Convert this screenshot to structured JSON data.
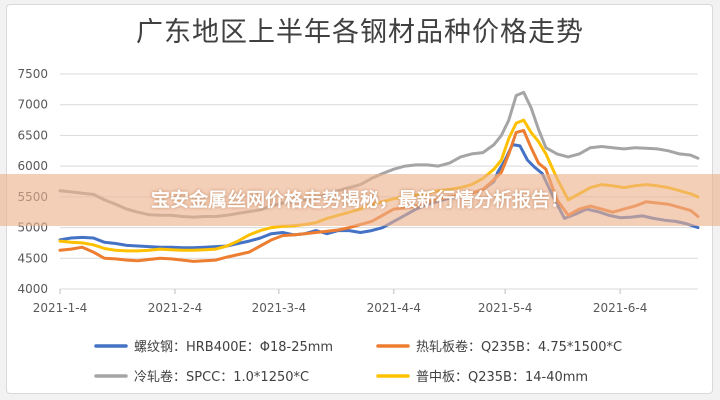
{
  "banner": {
    "text": "宝安金属丝网价格走势揭秘，最新行情分析报告！"
  },
  "colors": {
    "banner_bg": "#eeb28c",
    "banner_text": "#ffffff",
    "grid": "#d9d9d9"
  },
  "chart_data": {
    "type": "line",
    "title": "广东地区上半年各钢材品种价格走势",
    "xlabel": "",
    "ylabel": "",
    "ylim": [
      4000,
      7500
    ],
    "yticks": [
      4000,
      4500,
      5000,
      5500,
      6000,
      6500,
      7000,
      7500
    ],
    "x_start": "2021-1-4",
    "xticks": [
      "2021-1-4",
      "2021-2-4",
      "2021-3-4",
      "2021-4-4",
      "2021-5-4",
      "2021-6-4"
    ],
    "xtick_days": [
      0,
      31,
      59,
      90,
      120,
      151
    ],
    "x_end_day": 172,
    "grid": true,
    "legend_position": "bottom",
    "series": [
      {
        "name": "螺纹钢：HRB400E：Φ18-25mm",
        "color": "#4472c4",
        "x": [
          0,
          3,
          6,
          9,
          12,
          15,
          18,
          21,
          24,
          27,
          30,
          33,
          36,
          39,
          42,
          45,
          48,
          51,
          54,
          57,
          60,
          63,
          66,
          69,
          72,
          75,
          78,
          81,
          84,
          87,
          90,
          93,
          96,
          99,
          102,
          105,
          108,
          111,
          114,
          117,
          118,
          120,
          122,
          124,
          126,
          128,
          130,
          133,
          136,
          139,
          142,
          145,
          148,
          151,
          154,
          157,
          160,
          163,
          166,
          169,
          172
        ],
        "values": [
          4800,
          4830,
          4840,
          4830,
          4760,
          4740,
          4710,
          4700,
          4690,
          4680,
          4680,
          4670,
          4670,
          4680,
          4690,
          4700,
          4740,
          4780,
          4830,
          4900,
          4920,
          4880,
          4900,
          4950,
          4900,
          4950,
          4950,
          4920,
          4950,
          5000,
          5100,
          5200,
          5300,
          5380,
          5430,
          5480,
          5500,
          5560,
          5620,
          5750,
          5900,
          6100,
          6350,
          6330,
          6100,
          5980,
          5880,
          5500,
          5150,
          5220,
          5300,
          5260,
          5200,
          5160,
          5170,
          5190,
          5150,
          5120,
          5100,
          5060,
          5000
        ]
      },
      {
        "name": "热轧板卷：Q235B：4.75*1500*C",
        "color": "#ed7d31",
        "x": [
          0,
          3,
          6,
          9,
          12,
          15,
          18,
          21,
          24,
          27,
          30,
          33,
          36,
          39,
          42,
          45,
          48,
          51,
          54,
          57,
          60,
          63,
          66,
          69,
          72,
          75,
          78,
          81,
          84,
          87,
          90,
          93,
          96,
          99,
          102,
          105,
          108,
          111,
          114,
          117,
          119,
          121,
          123,
          125,
          127,
          129,
          131,
          134,
          137,
          140,
          143,
          146,
          149,
          152,
          155,
          158,
          161,
          164,
          167,
          170,
          172
        ],
        "values": [
          4630,
          4650,
          4680,
          4600,
          4500,
          4490,
          4470,
          4460,
          4480,
          4500,
          4490,
          4470,
          4450,
          4460,
          4470,
          4520,
          4560,
          4600,
          4700,
          4800,
          4870,
          4880,
          4900,
          4920,
          4940,
          4960,
          5000,
          5050,
          5100,
          5200,
          5300,
          5320,
          5350,
          5420,
          5460,
          5500,
          5520,
          5560,
          5620,
          5780,
          5900,
          6200,
          6550,
          6580,
          6300,
          6050,
          5950,
          5450,
          5200,
          5300,
          5350,
          5300,
          5250,
          5300,
          5350,
          5420,
          5400,
          5380,
          5330,
          5280,
          5180
        ]
      },
      {
        "name": "冷轧卷：SPCC：1.0*1250*C",
        "color": "#a5a5a5",
        "x": [
          0,
          3,
          6,
          9,
          12,
          15,
          18,
          21,
          24,
          27,
          30,
          33,
          36,
          39,
          42,
          45,
          48,
          51,
          54,
          57,
          60,
          63,
          66,
          69,
          72,
          75,
          78,
          81,
          84,
          87,
          90,
          93,
          96,
          99,
          102,
          105,
          108,
          111,
          114,
          117,
          119,
          121,
          123,
          125,
          127,
          129,
          131,
          134,
          137,
          140,
          143,
          146,
          149,
          152,
          155,
          158,
          161,
          164,
          167,
          170,
          172
        ],
        "values": [
          5600,
          5580,
          5560,
          5540,
          5450,
          5380,
          5300,
          5250,
          5210,
          5200,
          5200,
          5180,
          5170,
          5180,
          5180,
          5200,
          5230,
          5260,
          5290,
          5350,
          5400,
          5420,
          5450,
          5480,
          5550,
          5600,
          5650,
          5700,
          5800,
          5880,
          5950,
          6000,
          6020,
          6020,
          6000,
          6050,
          6150,
          6200,
          6220,
          6350,
          6500,
          6750,
          7150,
          7200,
          6950,
          6600,
          6300,
          6200,
          6150,
          6200,
          6300,
          6320,
          6300,
          6280,
          6300,
          6290,
          6280,
          6250,
          6200,
          6180,
          6130
        ]
      },
      {
        "name": "普中板：Q235B：14-40mm",
        "color": "#ffc000",
        "x": [
          0,
          3,
          6,
          9,
          12,
          15,
          18,
          21,
          24,
          27,
          30,
          33,
          36,
          39,
          42,
          45,
          48,
          51,
          54,
          57,
          60,
          63,
          66,
          69,
          72,
          75,
          78,
          81,
          84,
          87,
          90,
          93,
          96,
          99,
          102,
          105,
          108,
          111,
          114,
          117,
          119,
          121,
          123,
          125,
          127,
          129,
          131,
          134,
          137,
          140,
          143,
          146,
          149,
          152,
          155,
          158,
          161,
          164,
          167,
          170,
          172
        ],
        "values": [
          4780,
          4760,
          4750,
          4720,
          4660,
          4630,
          4620,
          4620,
          4630,
          4650,
          4640,
          4630,
          4630,
          4640,
          4650,
          4700,
          4780,
          4880,
          4950,
          5000,
          5020,
          5030,
          5050,
          5080,
          5150,
          5200,
          5250,
          5300,
          5380,
          5420,
          5470,
          5500,
          5530,
          5560,
          5600,
          5620,
          5650,
          5700,
          5800,
          5950,
          6100,
          6450,
          6700,
          6750,
          6550,
          6400,
          6200,
          5800,
          5450,
          5550,
          5650,
          5700,
          5680,
          5650,
          5680,
          5700,
          5680,
          5650,
          5600,
          5550,
          5500
        ]
      }
    ]
  }
}
